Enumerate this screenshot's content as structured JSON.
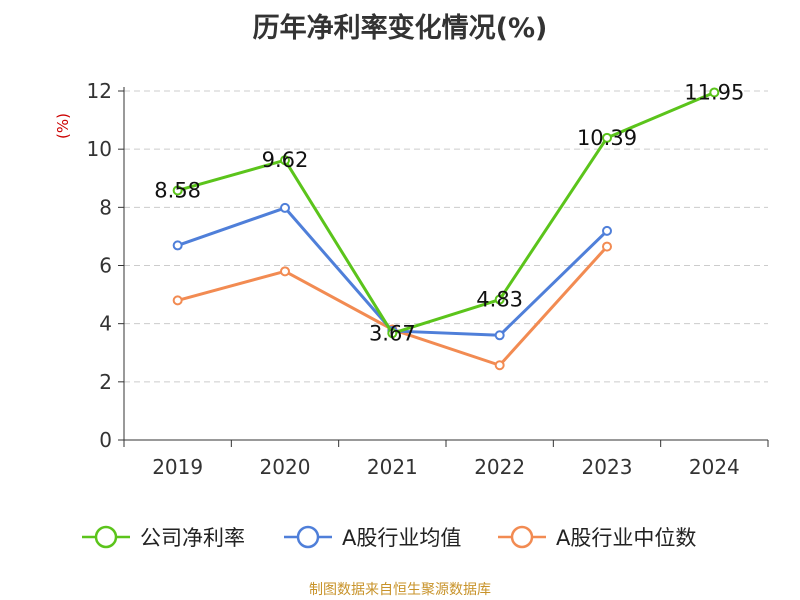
{
  "chart_data": {
    "type": "line",
    "title": "历年净利率变化情况(%)",
    "ylabel": "(%)",
    "ylim": [
      0,
      12
    ],
    "yticks": [
      0,
      2,
      4,
      6,
      8,
      10,
      12
    ],
    "categories": [
      "2019",
      "2020",
      "2021",
      "2022",
      "2023",
      "2024"
    ],
    "grid": "horizontal dashed",
    "legend": "bottom",
    "series": [
      {
        "name": "公司净利率",
        "color": "#5bc41b",
        "values": [
          8.58,
          9.62,
          3.67,
          4.83,
          10.39,
          11.95
        ],
        "labels": [
          "8.58",
          "9.62",
          "3.67",
          "4.83",
          "10.39",
          "11.95"
        ]
      },
      {
        "name": "A股行业均值",
        "color": "#4f7fd9",
        "values": [
          6.69,
          7.98,
          3.75,
          3.6,
          7.19,
          null
        ]
      },
      {
        "name": "A股行业中位数",
        "color": "#f28b52",
        "values": [
          4.8,
          5.8,
          3.8,
          2.57,
          6.65,
          null
        ]
      }
    ]
  },
  "source_note": "制图数据来自恒生聚源数据库",
  "colors": {
    "source_note": "#c8932a",
    "ylabel": "#cc0000",
    "axis": "#333333",
    "grid": "#cccccc"
  }
}
